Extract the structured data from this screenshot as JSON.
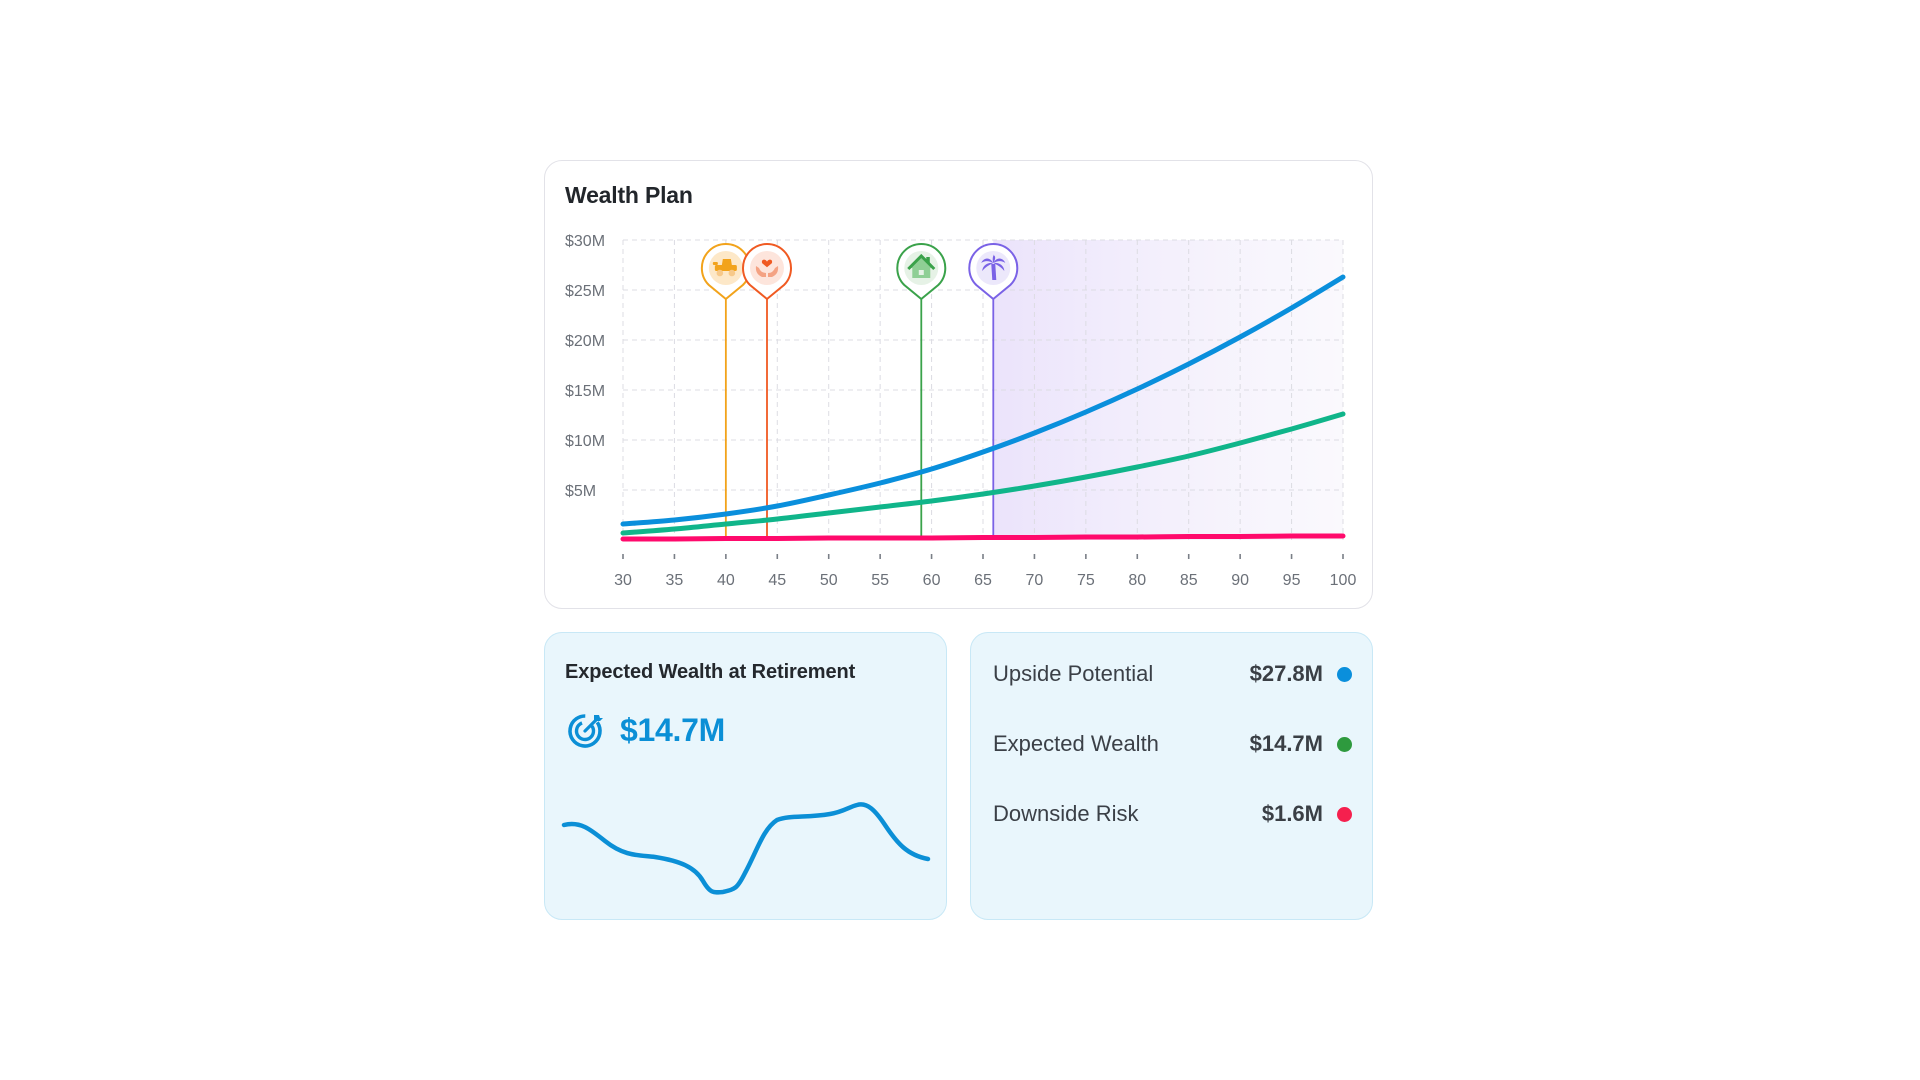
{
  "wealth_plan": {
    "title": "Wealth Plan"
  },
  "retirement_card": {
    "title": "Expected Wealth at Retirement",
    "icon": "target-icon",
    "value": "$14.7M",
    "color": "#0b8fd6"
  },
  "stats_card": {
    "rows": [
      {
        "label": "Upside Potential",
        "value": "$27.8M",
        "color": "#0a8fdc"
      },
      {
        "label": "Expected Wealth",
        "value": "$14.7M",
        "color": "#2e9a3e"
      },
      {
        "label": "Downside Risk",
        "value": "$1.6M",
        "color": "#f5204e"
      }
    ]
  },
  "chart_data": [
    {
      "type": "line",
      "title": "Wealth Plan",
      "xlabel": "",
      "ylabel": "",
      "xlim": [
        30,
        100
      ],
      "ylim": [
        0,
        30
      ],
      "x_ticks": [
        "30",
        "35",
        "40",
        "45",
        "50",
        "55",
        "60",
        "65",
        "70",
        "75",
        "80",
        "85",
        "90",
        "95",
        "100"
      ],
      "y_ticks": [
        "$5M",
        "$10M",
        "$15M",
        "$20M",
        "$25M",
        "$30M"
      ],
      "grid": true,
      "legend": "none",
      "x": [
        30,
        35,
        40,
        45,
        50,
        55,
        60,
        65,
        70,
        75,
        80,
        85,
        90,
        95,
        100
      ],
      "series": [
        {
          "name": "Upside Potential",
          "color": "#0a8fdc",
          "values": [
            1.6,
            2.0,
            2.6,
            3.4,
            4.5,
            5.7,
            7.1,
            8.8,
            10.7,
            12.8,
            15.1,
            17.6,
            20.3,
            23.2,
            26.3
          ]
        },
        {
          "name": "Expected Wealth",
          "color": "#10b58a",
          "values": [
            0.7,
            1.1,
            1.6,
            2.1,
            2.7,
            3.3,
            3.9,
            4.6,
            5.4,
            6.3,
            7.3,
            8.4,
            9.7,
            11.1,
            12.6
          ]
        },
        {
          "name": "Downside Risk",
          "color": "#ff0a6c",
          "values": [
            0.1,
            0.1,
            0.15,
            0.15,
            0.2,
            0.2,
            0.2,
            0.25,
            0.25,
            0.3,
            0.3,
            0.35,
            0.35,
            0.4,
            0.4
          ]
        }
      ],
      "milestones": [
        {
          "age": 40,
          "icon": "truck-icon",
          "color": "#f2a31b",
          "fill": "#fde8c8"
        },
        {
          "age": 44,
          "icon": "heart-hands-icon",
          "color": "#f05a22",
          "fill": "#fde5dc"
        },
        {
          "age": 59,
          "icon": "house-icon",
          "color": "#3aa24a",
          "fill": "#e6f2e6"
        },
        {
          "age": 66,
          "icon": "palm-tree-icon",
          "color": "#7a62e6",
          "fill": "#ece8fb"
        }
      ],
      "shaded_region": {
        "from": 66,
        "to": 100,
        "label": "retirement",
        "color": "#ece5fb"
      }
    },
    {
      "type": "line",
      "title": "Expected Wealth at Retirement (sparkline)",
      "values": [
        0.45,
        0.3,
        0.22,
        0.12,
        0.05,
        0.0,
        0.07,
        0.32,
        0.5,
        0.52,
        0.6,
        0.52,
        0.3,
        0.2
      ]
    }
  ]
}
